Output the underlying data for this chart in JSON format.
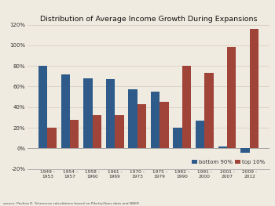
{
  "title": "Distribution of Average Income Growth During Expansions",
  "categories": [
    "1949 -\n1953",
    "1954 -\n1957",
    "1958 -\n1960",
    "1961 -\n1969",
    "1970 -\n1973",
    "1975 -\n1979",
    "1982 -\n1990",
    "1991 -\n2000",
    "2001 -\n2007",
    "2009 -\n2012"
  ],
  "bottom_90": [
    80,
    72,
    68,
    67,
    57,
    55,
    20,
    27,
    2,
    -4
  ],
  "top_10": [
    20,
    28,
    32,
    32,
    43,
    45,
    80,
    73,
    98,
    116
  ],
  "color_bottom": "#2e5b8a",
  "color_top": "#a0443a",
  "ylim": [
    -20,
    120
  ],
  "yticks": [
    -20,
    0,
    20,
    40,
    60,
    80,
    100,
    120
  ],
  "ytick_labels": [
    "-20%",
    "0%",
    "20%",
    "40%",
    "60%",
    "80%",
    "100%",
    "120%"
  ],
  "legend_bottom": "bottom 90%",
  "legend_top": "top 10%",
  "source_text": "source: Pavlina R. Tcherneva calculations based on Piketty/Saez data and NBER",
  "background_color": "#f0ebe0"
}
